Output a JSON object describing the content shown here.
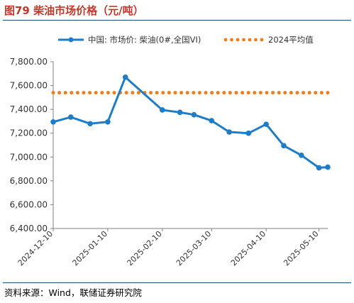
{
  "figure": {
    "title": "图79 柴油市场价格（元/吨）",
    "source": "资料来源：Wind，联储证券研究院"
  },
  "colors": {
    "title": "#c0392b",
    "series_main": "#1f7dc8",
    "series_avg": "#f07d1a",
    "rule": "#1f4e79"
  },
  "chart_data": {
    "type": "line",
    "title": "",
    "xlabel": "",
    "ylabel": "",
    "ylim": [
      6400,
      7800
    ],
    "yticks": [
      6400,
      6600,
      6800,
      7000,
      7200,
      7400,
      7600,
      7800
    ],
    "ytick_labels": [
      "6,400.00",
      "6,600.00",
      "6,800.00",
      "7,000.00",
      "7,200.00",
      "7,400.00",
      "7,600.00",
      "7,800.00"
    ],
    "xlim": [
      "2024-12-10",
      "2025-05-15"
    ],
    "xtick_labels": [
      "2024-12-10",
      "2025-01-10",
      "2025-02-10",
      "2025-03-10",
      "2025-04-10",
      "2025-05-10"
    ],
    "grid": false,
    "legend_position": "top",
    "series": [
      {
        "name": "中国: 市场价: 柴油(0#,全国VI)",
        "style": "solid-line-markers",
        "x": [
          "2024-12-10",
          "2024-12-20",
          "2024-12-31",
          "2025-01-10",
          "2025-01-20",
          "2025-02-10",
          "2025-02-20",
          "2025-02-28",
          "2025-03-10",
          "2025-03-20",
          "2025-03-31",
          "2025-04-10",
          "2025-04-20",
          "2025-04-30",
          "2025-05-10",
          "2025-05-15"
        ],
        "values": [
          7295,
          7335,
          7280,
          7295,
          7670,
          7395,
          7375,
          7355,
          7305,
          7210,
          7200,
          7275,
          7095,
          7015,
          6910,
          6915
        ]
      },
      {
        "name": "2024平均值",
        "style": "dotted",
        "x": [
          "2024-12-10",
          "2025-05-15"
        ],
        "values": [
          7540,
          7540
        ]
      }
    ]
  }
}
